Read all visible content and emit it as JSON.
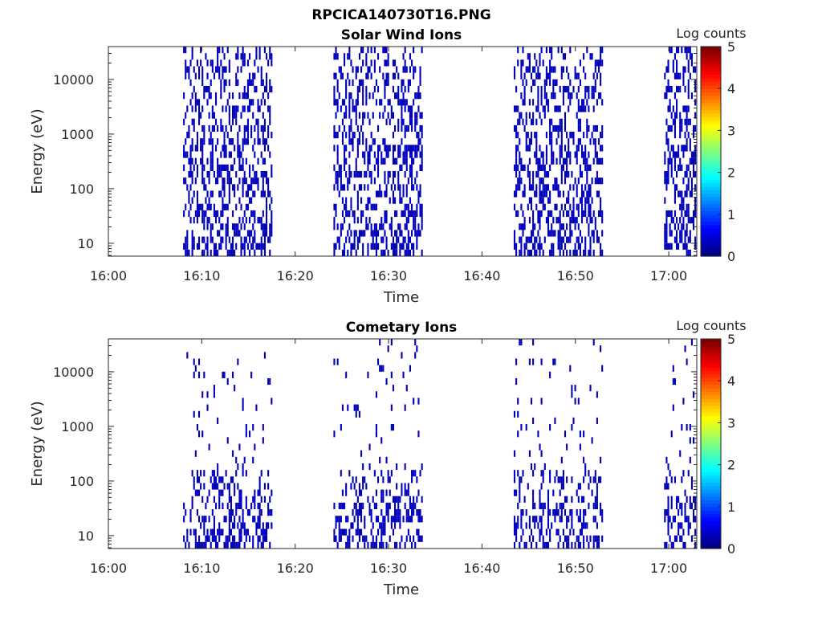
{
  "figure_title": "RPCICA140730T16.PNG",
  "chart_data": [
    {
      "type": "heatmap",
      "title": "Solar Wind Ions",
      "xlabel": "Time",
      "ylabel": "Energy (eV)",
      "x_ticks": [
        "16:00",
        "16:10",
        "16:20",
        "16:30",
        "16:40",
        "16:50",
        "17:00"
      ],
      "x_range_minutes": [
        0,
        63
      ],
      "y_scale": "log",
      "y_ticks": [
        "10",
        "100",
        "1000",
        "10000"
      ],
      "y_range": [
        5.8,
        40000
      ],
      "colorbar": {
        "label": "Log counts",
        "range": [
          0,
          5
        ],
        "ticks": [
          "0",
          "1",
          "2",
          "3",
          "4",
          "5"
        ],
        "colormap": "jet"
      },
      "data_intervals_minutes": [
        [
          8.0,
          17.6
        ],
        [
          24.1,
          33.7
        ],
        [
          43.4,
          53.0
        ],
        [
          59.5,
          63.0
        ]
      ],
      "data_color": "#0000bb",
      "density": "high"
    },
    {
      "type": "heatmap",
      "title": "Cometary Ions",
      "xlabel": "Time",
      "ylabel": "Energy (eV)",
      "x_ticks": [
        "16:00",
        "16:10",
        "16:20",
        "16:30",
        "16:40",
        "16:50",
        "17:00"
      ],
      "x_range_minutes": [
        0,
        63
      ],
      "y_scale": "log",
      "y_ticks": [
        "10",
        "100",
        "1000",
        "10000"
      ],
      "y_range": [
        5.8,
        40000
      ],
      "colorbar": {
        "label": "Log counts",
        "range": [
          0,
          5
        ],
        "ticks": [
          "0",
          "1",
          "2",
          "3",
          "4",
          "5"
        ],
        "colormap": "jet"
      },
      "data_intervals_minutes": [
        [
          8.0,
          17.6
        ],
        [
          24.1,
          33.7
        ],
        [
          43.4,
          53.0
        ],
        [
          59.5,
          63.0
        ]
      ],
      "data_color": "#0000bb",
      "density": "low"
    }
  ]
}
